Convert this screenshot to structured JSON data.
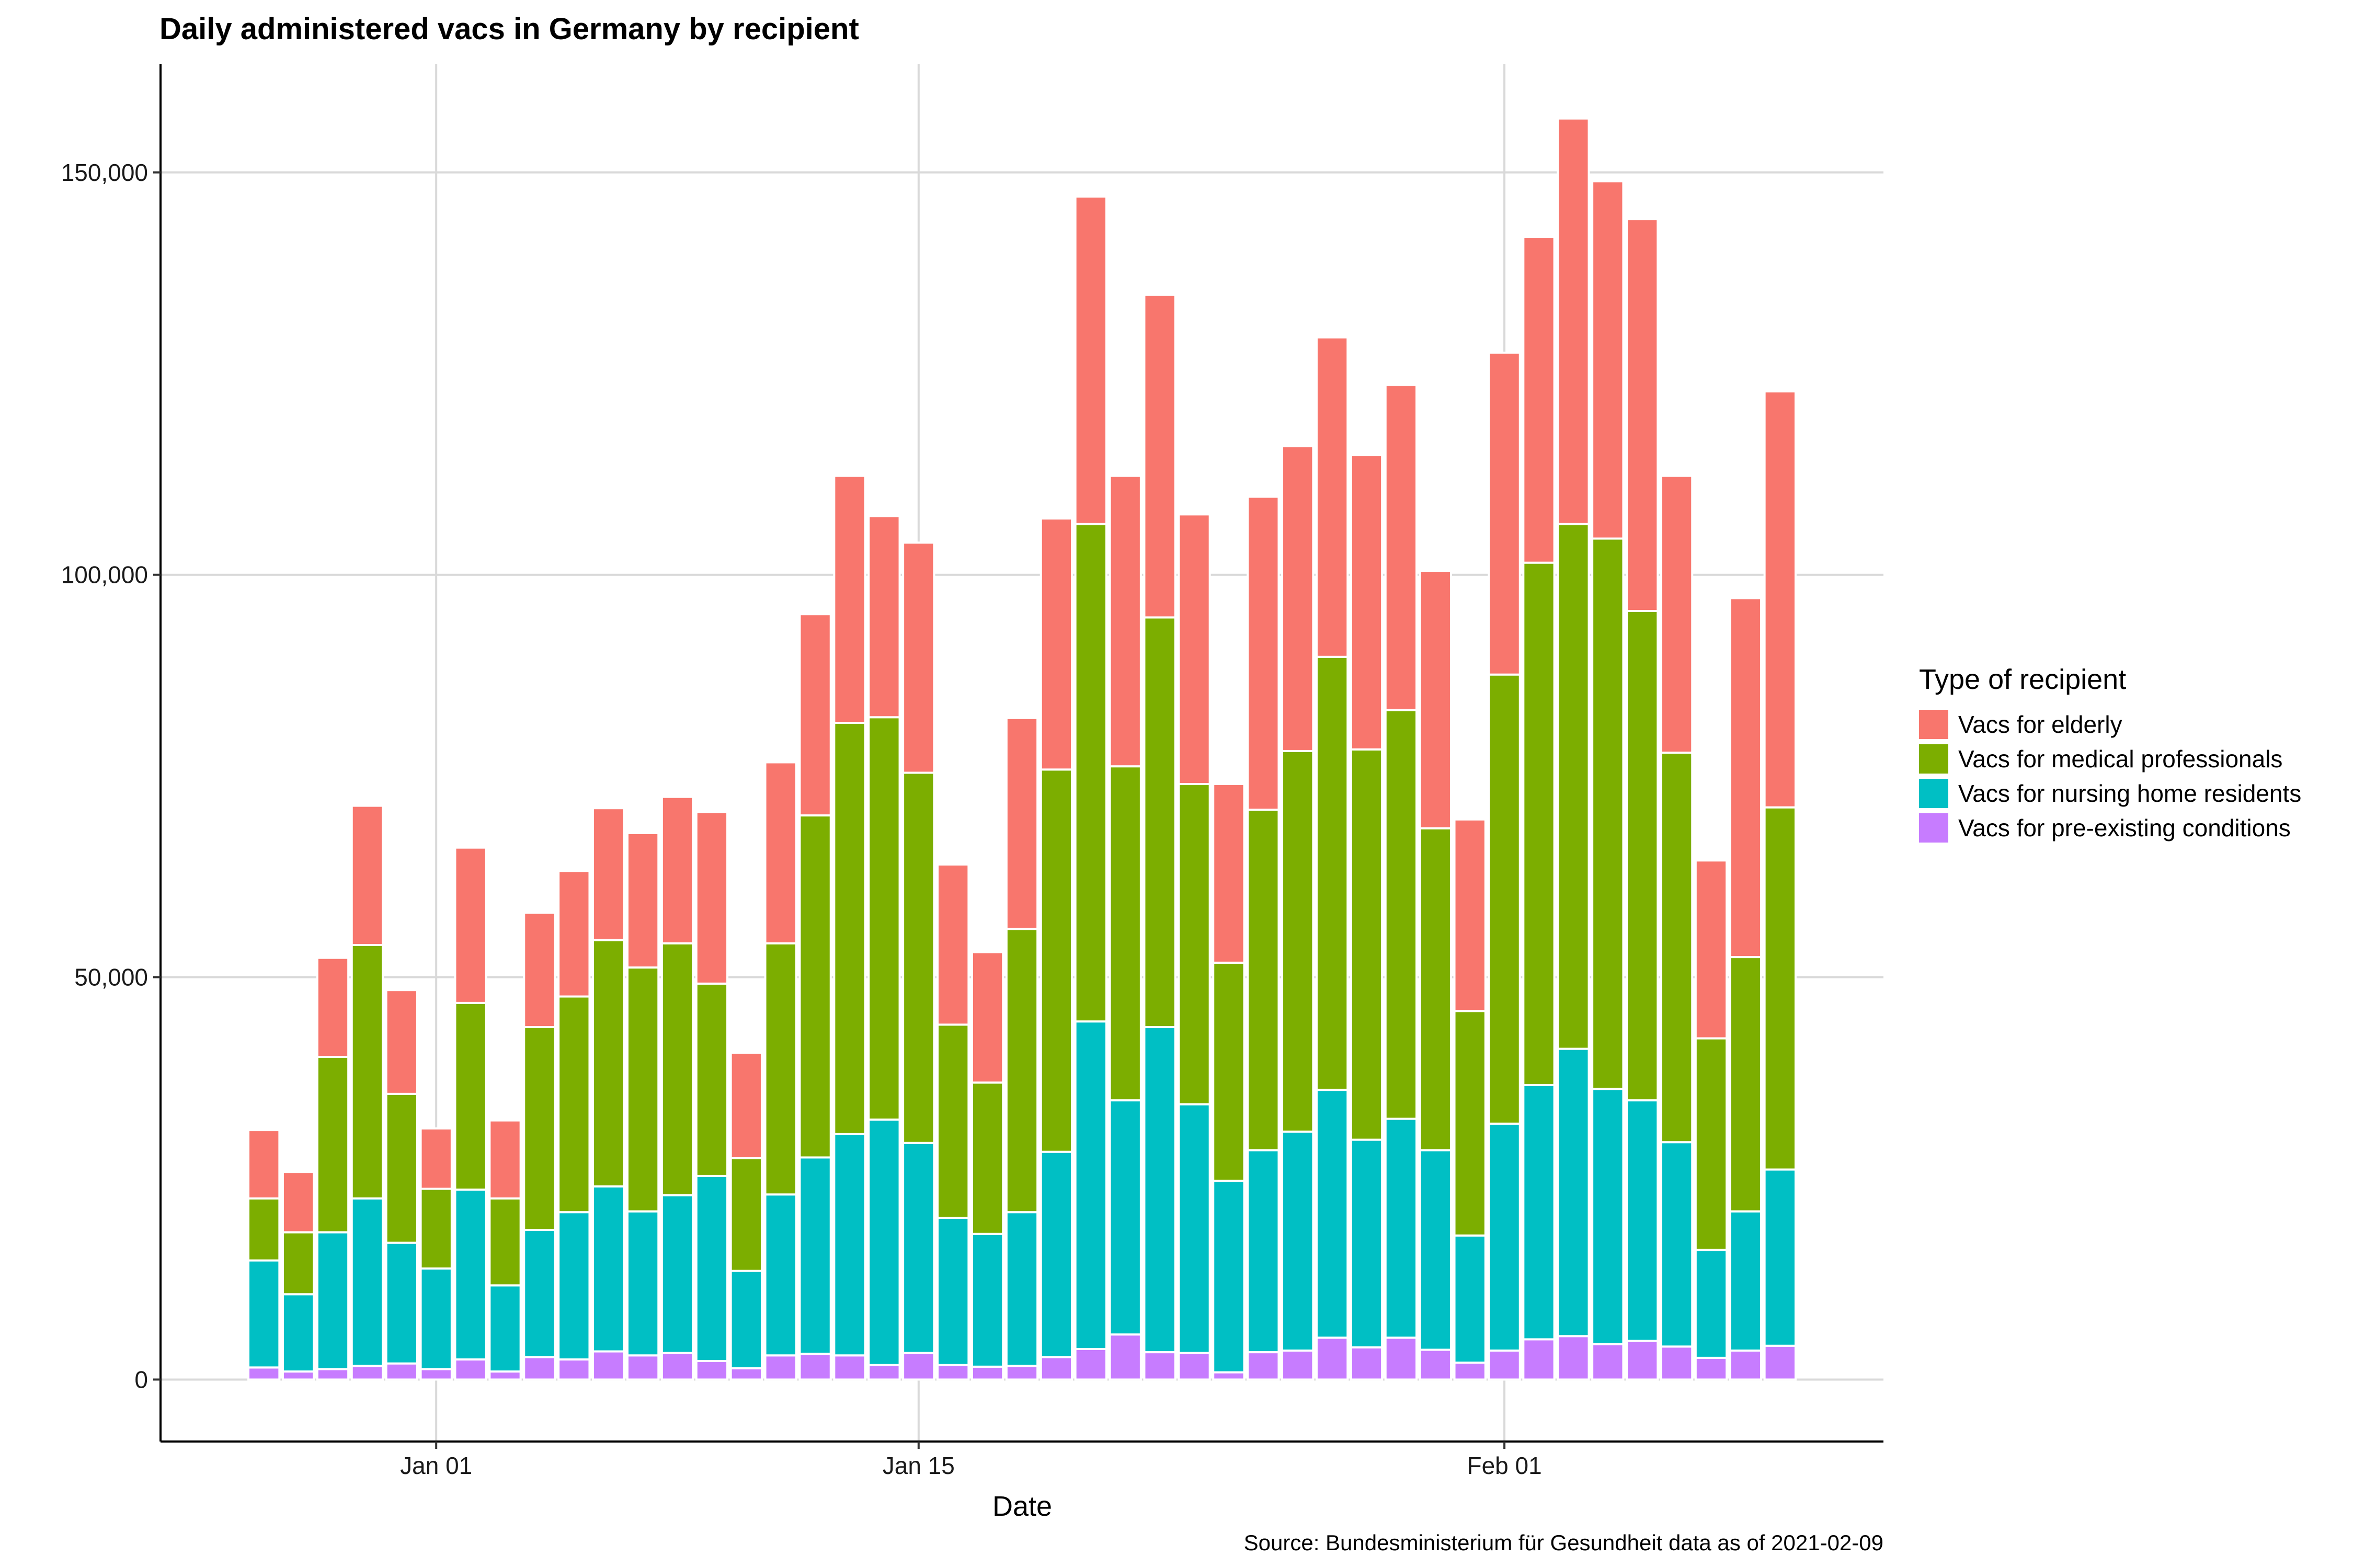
{
  "chart_data": {
    "type": "bar",
    "stacked": true,
    "title": "Daily administered vacs in Germany by recipient",
    "xlabel": "Date",
    "ylabel": "",
    "caption": "Source: Bundesministerium für Gesundheit data as of 2021-02-09",
    "legend_title": "Type of recipient",
    "legend_position": "right",
    "grid": true,
    "ylim": [
      -7700,
      163500
    ],
    "y_ticks": [
      0,
      50000,
      100000,
      150000
    ],
    "y_tick_labels": [
      "0",
      "50,000",
      "100,000",
      "150,000"
    ],
    "x_ticks": [
      "2021-01-01",
      "2021-01-15",
      "2021-02-01"
    ],
    "x_tick_labels": [
      "Jan 01",
      "Jan 15",
      "Feb 01"
    ],
    "x_range": [
      "2020-12-24",
      "2021-02-12"
    ],
    "categories": [
      "2020-12-27",
      "2020-12-28",
      "2020-12-29",
      "2020-12-30",
      "2020-12-31",
      "2021-01-01",
      "2021-01-02",
      "2021-01-03",
      "2021-01-04",
      "2021-01-05",
      "2021-01-06",
      "2021-01-07",
      "2021-01-08",
      "2021-01-09",
      "2021-01-10",
      "2021-01-11",
      "2021-01-12",
      "2021-01-13",
      "2021-01-14",
      "2021-01-15",
      "2021-01-16",
      "2021-01-17",
      "2021-01-18",
      "2021-01-19",
      "2021-01-20",
      "2021-01-21",
      "2021-01-22",
      "2021-01-23",
      "2021-01-24",
      "2021-01-25",
      "2021-01-26",
      "2021-01-27",
      "2021-01-28",
      "2021-01-29",
      "2021-01-30",
      "2021-01-31",
      "2021-02-01",
      "2021-02-02",
      "2021-02-03",
      "2021-02-04",
      "2021-02-05",
      "2021-02-06",
      "2021-02-07",
      "2021-02-08",
      "2021-02-09"
    ],
    "series": [
      {
        "name": "Vacs for pre-existing conditions",
        "color": "#C77CFF",
        "values": [
          1500,
          1000,
          1300,
          1700,
          2000,
          1300,
          2500,
          1000,
          2800,
          2500,
          3500,
          3000,
          3300,
          2300,
          1400,
          3000,
          3200,
          3000,
          1800,
          3300,
          1800,
          1600,
          1700,
          2800,
          3800,
          5600,
          3400,
          3300,
          900,
          3400,
          3600,
          5200,
          4000,
          5200,
          3700,
          2100,
          3600,
          5000,
          5400,
          4400,
          4800,
          4100,
          2700,
          3600,
          4200
        ]
      },
      {
        "name": "Vacs for nursing home residents",
        "color": "#00BFC4",
        "values": [
          13300,
          9600,
          17000,
          20800,
          15000,
          12500,
          21100,
          10700,
          15800,
          18300,
          20500,
          17900,
          19600,
          23000,
          12100,
          20000,
          24400,
          27500,
          30500,
          26100,
          18300,
          16500,
          19100,
          25500,
          40700,
          29100,
          40400,
          30900,
          23800,
          25100,
          27200,
          30800,
          25800,
          27200,
          24800,
          15800,
          28200,
          31600,
          35700,
          31700,
          29900,
          25400,
          13400,
          17300,
          21900
        ]
      },
      {
        "name": "Vacs for medical professionals",
        "color": "#7CAE00",
        "values": [
          7700,
          7700,
          21800,
          31500,
          18500,
          9900,
          23200,
          10800,
          25200,
          26800,
          30600,
          30300,
          31300,
          23900,
          14000,
          31200,
          42500,
          51100,
          50000,
          46000,
          24000,
          18800,
          35200,
          47500,
          61800,
          41500,
          50900,
          39800,
          27100,
          42300,
          47300,
          53800,
          48500,
          50800,
          40000,
          27900,
          55800,
          64900,
          65200,
          68400,
          60800,
          48400,
          26300,
          31600,
          45000
        ]
      },
      {
        "name": "Vacs for elderly",
        "color": "#F8766D",
        "values": [
          8500,
          7500,
          12300,
          17300,
          12900,
          7500,
          19300,
          9700,
          14200,
          15600,
          16400,
          16700,
          18200,
          21300,
          13100,
          22500,
          25000,
          30700,
          25000,
          28600,
          19900,
          16200,
          26200,
          31200,
          40700,
          36100,
          40100,
          33500,
          22200,
          38900,
          37900,
          39700,
          36600,
          40400,
          32000,
          23800,
          40000,
          40500,
          50400,
          44400,
          48700,
          34400,
          22100,
          44600,
          51700
        ]
      }
    ]
  }
}
